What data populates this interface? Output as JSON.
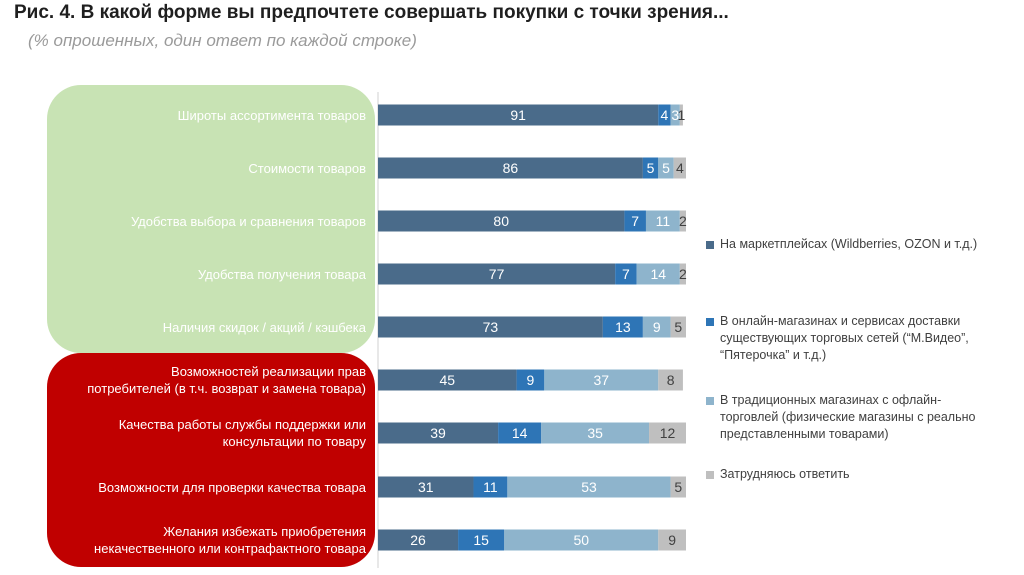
{
  "title": "Рис. 4. В какой форме вы предпочтете совершать покупки с точки зрения...",
  "subtitle": "(% опрошенных, один ответ по каждой строке)",
  "colors": {
    "green_group": "#c8e3b4",
    "red_group": "#c00000",
    "series": [
      "#4a6b8a",
      "#2e75b6",
      "#8eb4cc",
      "#bfbfbf"
    ]
  },
  "chart_data": {
    "type": "bar",
    "orientation": "horizontal",
    "stacked": true,
    "categories": [
      "Широты ассортимента товаров",
      "Стоимости товаров",
      "Удобства выбора и сравнения товаров",
      "Удобства получения товара",
      "Наличия скидок / акций / кэшбека",
      "Возможностей реализации прав потребителей (в т.ч. возврат и замена товара)",
      "Качества работы службы поддержки или консультации по товару",
      "Возможности для проверки качества товара",
      "Желания избежать приобретения некачественного или контрафактного товара"
    ],
    "category_lines": [
      [
        "Широты ассортимента товаров"
      ],
      [
        "Стоимости товаров"
      ],
      [
        "Удобства выбора и сравнения товаров"
      ],
      [
        "Удобства получения товара"
      ],
      [
        "Наличия скидок / акций / кэшбека"
      ],
      [
        "Возможностей реализации прав",
        "потребителей (в т.ч. возврат и замена товара)"
      ],
      [
        "Качества работы службы поддержки или",
        "консультации по товару"
      ],
      [
        "Возможности для проверки качества товара"
      ],
      [
        "Желания избежать приобретения",
        "некачественного или контрафактного товара"
      ]
    ],
    "series": [
      {
        "name": "На маркетплейсах (Wildberries, OZON и т.д.)",
        "values": [
          91,
          86,
          80,
          77,
          73,
          45,
          39,
          31,
          26
        ]
      },
      {
        "name": "В онлайн-магазинах и сервисах доставки существующих торговых сетей (“М.Видео”, “Пятерочка” и т.д.)",
        "values": [
          4,
          5,
          7,
          7,
          13,
          9,
          14,
          11,
          15
        ]
      },
      {
        "name": "В традиционных магазинах с офлайн-торговлей (физические магазины с реально представленными товарами)",
        "values": [
          3,
          5,
          11,
          14,
          9,
          37,
          35,
          53,
          50
        ]
      },
      {
        "name": "Затрудняюсь ответить",
        "values": [
          1,
          4,
          2,
          2,
          5,
          8,
          12,
          5,
          9
        ]
      }
    ],
    "legend_lines": [
      [
        "На маркетплейсах (Wildberries, OZON и т.д.)"
      ],
      [
        "В онлайн-магазинах и сервисах доставки",
        "существующих торговых сетей (“М.Видео”,",
        "“Пятерочка” и т.д.)"
      ],
      [
        "В традиционных магазинах с офлайн-",
        "торговлей (физические магазины с реально",
        "представленными товарами)"
      ],
      [
        "Затрудняюсь ответить"
      ]
    ],
    "xlim": [
      0,
      100
    ],
    "legend_position": "right"
  }
}
